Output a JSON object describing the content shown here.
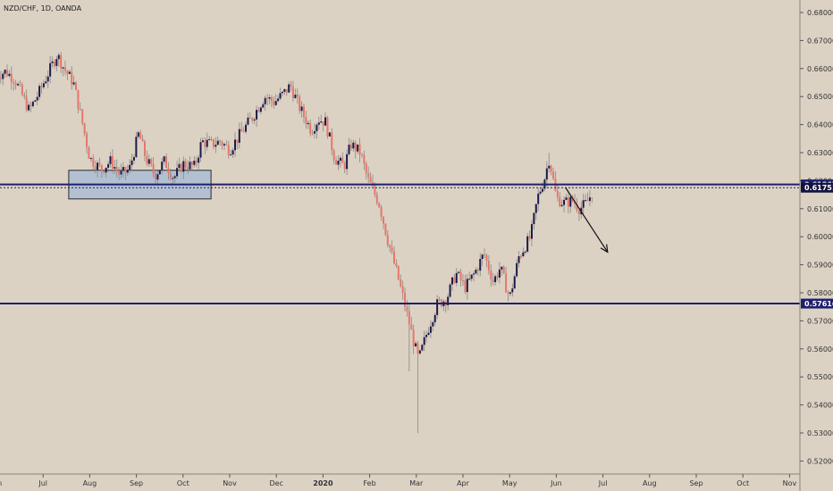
{
  "symbol_title": "NZD/CHF, 1D, OANDA",
  "colors": {
    "background": "#dcd2c4",
    "up_candle": "#1a1a4a",
    "down_candle": "#e7766a",
    "level_line": "#1f1f6e",
    "zone_fill": "#a6bad6",
    "zone_border": "#2a2a2a",
    "arrow": "#111111"
  },
  "chart_data": {
    "type": "candlestick",
    "title": "NZD/CHF, 1D, OANDA",
    "ylim": [
      0.515,
      0.684
    ],
    "y_ticks": [
      "0.68000",
      "0.67000",
      "0.66000",
      "0.65000",
      "0.64000",
      "0.63000",
      "0.62000",
      "0.61000",
      "0.60000",
      "0.59000",
      "0.58000",
      "0.57000",
      "0.56000",
      "0.55000",
      "0.54000",
      "0.53000",
      "0.52000"
    ],
    "x_ticks": [
      "Jun",
      "Jul",
      "Aug",
      "Sep",
      "Oct",
      "Nov",
      "Dec",
      "2020",
      "Feb",
      "Mar",
      "Apr",
      "May",
      "Jun",
      "Jul",
      "Aug",
      "Sep",
      "Oct",
      "Nov"
    ],
    "x_range_months": [
      0,
      17.6
    ],
    "horizontal_levels": [
      {
        "label": "0.61867",
        "value": 0.61867,
        "style": "solid"
      },
      {
        "label": "0.61751",
        "value": 0.61751,
        "style": "dotted"
      },
      {
        "label": "0.57616",
        "value": 0.57616,
        "style": "solid"
      }
    ],
    "zones": [
      {
        "x_start_months": 1.55,
        "x_end_months": 4.6,
        "y_low": 0.6135,
        "y_high": 0.6237
      }
    ],
    "arrows": [
      {
        "from": [
          12.2,
          0.6175
        ],
        "to": [
          13.1,
          0.5945
        ]
      }
    ],
    "price_anchors": [
      [
        0.0,
        0.6575
      ],
      [
        0.2,
        0.659
      ],
      [
        0.4,
        0.656
      ],
      [
        0.7,
        0.645
      ],
      [
        0.9,
        0.651
      ],
      [
        1.1,
        0.658
      ],
      [
        1.3,
        0.665
      ],
      [
        1.45,
        0.66
      ],
      [
        1.65,
        0.655
      ],
      [
        1.85,
        0.64
      ],
      [
        2.0,
        0.628
      ],
      [
        2.25,
        0.624
      ],
      [
        2.45,
        0.627
      ],
      [
        2.65,
        0.622
      ],
      [
        2.85,
        0.624
      ],
      [
        3.05,
        0.637
      ],
      [
        3.2,
        0.628
      ],
      [
        3.4,
        0.622
      ],
      [
        3.6,
        0.627
      ],
      [
        3.8,
        0.621
      ],
      [
        4.0,
        0.626
      ],
      [
        4.25,
        0.625
      ],
      [
        4.4,
        0.634
      ],
      [
        4.6,
        0.633
      ],
      [
        4.8,
        0.634
      ],
      [
        5.0,
        0.631
      ],
      [
        5.2,
        0.636
      ],
      [
        5.5,
        0.643
      ],
      [
        5.75,
        0.65
      ],
      [
        5.95,
        0.648
      ],
      [
        6.15,
        0.651
      ],
      [
        6.3,
        0.654
      ],
      [
        6.5,
        0.646
      ],
      [
        6.75,
        0.638
      ],
      [
        6.9,
        0.642
      ],
      [
        7.05,
        0.641
      ],
      [
        7.25,
        0.628
      ],
      [
        7.45,
        0.625
      ],
      [
        7.6,
        0.633
      ],
      [
        7.8,
        0.63
      ],
      [
        7.95,
        0.621
      ],
      [
        8.2,
        0.612
      ],
      [
        8.4,
        0.598
      ],
      [
        8.6,
        0.586
      ],
      [
        8.75,
        0.576
      ],
      [
        8.95,
        0.562
      ],
      [
        9.05,
        0.556
      ],
      [
        9.25,
        0.567
      ],
      [
        9.45,
        0.576
      ],
      [
        9.65,
        0.578
      ],
      [
        9.85,
        0.587
      ],
      [
        10.05,
        0.582
      ],
      [
        10.25,
        0.587
      ],
      [
        10.45,
        0.594
      ],
      [
        10.65,
        0.584
      ],
      [
        10.8,
        0.589
      ],
      [
        11.0,
        0.578
      ],
      [
        11.2,
        0.593
      ],
      [
        11.45,
        0.6
      ],
      [
        11.6,
        0.614
      ],
      [
        11.75,
        0.621
      ],
      [
        11.85,
        0.628
      ],
      [
        12.0,
        0.614
      ],
      [
        12.15,
        0.612
      ],
      [
        12.35,
        0.613
      ],
      [
        12.5,
        0.61
      ],
      [
        12.65,
        0.612
      ],
      [
        12.8,
        0.6168
      ]
    ],
    "volatility_spikes": [
      {
        "x_months": 8.85,
        "low": 0.552
      },
      {
        "x_months": 9.05,
        "low": 0.53
      },
      {
        "x_months": 11.85,
        "high": 0.63
      }
    ]
  }
}
